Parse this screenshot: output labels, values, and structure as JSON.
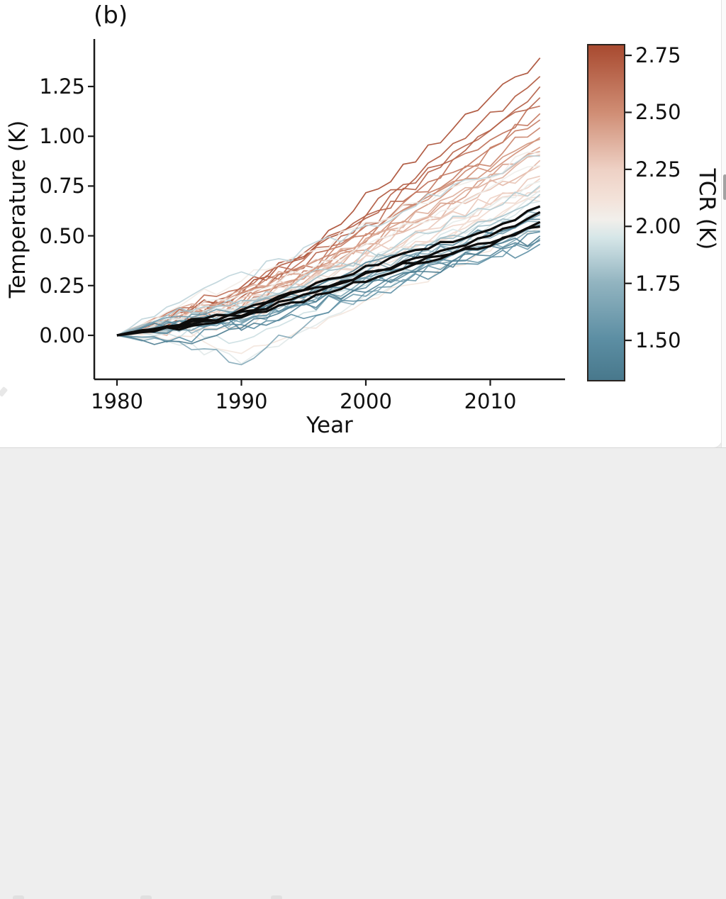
{
  "figure": {
    "panel_label": "(b)",
    "xlabel": "Year",
    "ylabel": "Temperature (K)",
    "colorbar_label": "TCR (K)"
  },
  "chart_data": {
    "type": "line",
    "title": "",
    "xlabel": "Year",
    "ylabel": "Temperature (K)",
    "xlim": [
      1978.2,
      2016.2
    ],
    "ylim": [
      -0.22,
      1.49
    ],
    "grid": false,
    "x_ticks": [
      {
        "value": 1980,
        "label": "1980"
      },
      {
        "value": 1990,
        "label": "1990"
      },
      {
        "value": 2000,
        "label": "2000"
      },
      {
        "value": 2010,
        "label": "2010"
      }
    ],
    "y_ticks": [
      {
        "value": 0.0,
        "label": "0.00"
      },
      {
        "value": 0.25,
        "label": "0.25"
      },
      {
        "value": 0.5,
        "label": "0.50"
      },
      {
        "value": 0.75,
        "label": "0.75"
      },
      {
        "value": 1.0,
        "label": "1.00"
      },
      {
        "value": 1.25,
        "label": "1.25"
      }
    ],
    "anchor_years": [
      1980,
      1985,
      1990,
      1995,
      2000,
      2005,
      2010,
      2014
    ],
    "ensemble_color_by": "tcr",
    "ensemble": [
      {
        "tcr": 2.8,
        "values": [
          0,
          0.1,
          0.22,
          0.42,
          0.7,
          0.95,
          1.18,
          1.4
        ]
      },
      {
        "tcr": 2.75,
        "values": [
          0,
          0.06,
          0.25,
          0.38,
          0.62,
          0.85,
          1.1,
          1.3
        ]
      },
      {
        "tcr": 2.72,
        "values": [
          0,
          0.12,
          0.18,
          0.4,
          0.6,
          0.82,
          1.05,
          1.25
        ]
      },
      {
        "tcr": 2.7,
        "values": [
          0,
          0.08,
          0.2,
          0.35,
          0.58,
          0.8,
          1.02,
          1.2
        ]
      },
      {
        "tcr": 2.65,
        "values": [
          0,
          0.14,
          0.24,
          0.38,
          0.55,
          0.78,
          0.98,
          1.15
        ]
      },
      {
        "tcr": 2.6,
        "values": [
          0,
          0.05,
          0.15,
          0.33,
          0.52,
          0.75,
          0.95,
          1.12
        ]
      },
      {
        "tcr": 2.58,
        "values": [
          0,
          0.1,
          0.2,
          0.3,
          0.5,
          0.72,
          0.92,
          1.08
        ]
      },
      {
        "tcr": 2.55,
        "values": [
          0,
          0.07,
          0.18,
          0.36,
          0.54,
          0.7,
          0.88,
          1.05
        ]
      },
      {
        "tcr": 2.5,
        "values": [
          0,
          0.12,
          0.16,
          0.3,
          0.48,
          0.68,
          0.85,
          1.0
        ]
      },
      {
        "tcr": 2.48,
        "values": [
          0,
          0.04,
          0.14,
          0.28,
          0.45,
          0.65,
          0.83,
          0.98
        ]
      },
      {
        "tcr": 2.45,
        "values": [
          0,
          0.09,
          0.2,
          0.32,
          0.46,
          0.62,
          0.8,
          0.95
        ]
      },
      {
        "tcr": 2.4,
        "values": [
          0,
          0.06,
          0.12,
          0.26,
          0.44,
          0.6,
          0.78,
          0.92
        ]
      },
      {
        "tcr": 2.38,
        "values": [
          0,
          0.11,
          0.22,
          0.34,
          0.48,
          0.63,
          0.78,
          0.9
        ]
      },
      {
        "tcr": 2.35,
        "values": [
          0,
          0.03,
          0.1,
          0.24,
          0.42,
          0.58,
          0.75,
          0.88
        ]
      },
      {
        "tcr": 2.3,
        "values": [
          0,
          0.08,
          0.15,
          0.28,
          0.44,
          0.58,
          0.72,
          0.85
        ]
      },
      {
        "tcr": 2.28,
        "values": [
          0,
          0.05,
          0.18,
          0.3,
          0.4,
          0.55,
          0.68,
          0.8
        ]
      },
      {
        "tcr": 2.25,
        "values": [
          0,
          0.1,
          0.14,
          0.25,
          0.38,
          0.52,
          0.66,
          0.78
        ]
      },
      {
        "tcr": 2.22,
        "values": [
          0,
          0.02,
          0.08,
          0.22,
          0.36,
          0.5,
          0.64,
          0.75
        ]
      },
      {
        "tcr": 2.2,
        "values": [
          0,
          0.07,
          0.16,
          0.26,
          0.38,
          0.48,
          0.62,
          0.72
        ]
      },
      {
        "tcr": 2.15,
        "values": [
          0,
          0.04,
          0.12,
          0.2,
          0.34,
          0.46,
          0.6,
          0.7
        ]
      },
      {
        "tcr": 2.12,
        "values": [
          0,
          -0.02,
          0.06,
          0.18,
          0.32,
          0.44,
          0.58,
          0.68
        ]
      },
      {
        "tcr": 2.1,
        "values": [
          0,
          0.04,
          -0.1,
          0.02,
          0.18,
          0.3,
          0.44,
          0.55
        ]
      },
      {
        "tcr": 2.05,
        "values": [
          0,
          0.15,
          0.28,
          0.4,
          0.55,
          0.68,
          0.82,
          0.92
        ]
      },
      {
        "tcr": 2.02,
        "values": [
          0,
          0.1,
          0.2,
          0.32,
          0.46,
          0.6,
          0.74,
          0.85
        ]
      },
      {
        "tcr": 2.0,
        "values": [
          0,
          0.05,
          0.12,
          0.24,
          0.38,
          0.52,
          0.66,
          0.78
        ]
      },
      {
        "tcr": 1.98,
        "values": [
          0,
          -0.04,
          -0.12,
          0.02,
          0.2,
          0.38,
          0.55,
          0.72
        ]
      },
      {
        "tcr": 1.95,
        "values": [
          0,
          0.08,
          0.14,
          0.22,
          0.34,
          0.46,
          0.58,
          0.68
        ]
      },
      {
        "tcr": 1.92,
        "values": [
          0,
          0.02,
          -0.03,
          0.12,
          0.26,
          0.38,
          0.52,
          0.62
        ]
      },
      {
        "tcr": 1.88,
        "values": [
          0,
          0.18,
          0.3,
          0.42,
          0.55,
          0.68,
          0.8,
          0.9
        ]
      },
      {
        "tcr": 1.85,
        "values": [
          0,
          0.09,
          0.16,
          0.28,
          0.4,
          0.52,
          0.64,
          0.75
        ]
      },
      {
        "tcr": 1.8,
        "values": [
          0,
          0.05,
          0.1,
          0.2,
          0.33,
          0.45,
          0.58,
          0.7
        ]
      },
      {
        "tcr": 1.78,
        "values": [
          0,
          0.12,
          0.18,
          0.26,
          0.36,
          0.46,
          0.56,
          0.65
        ]
      },
      {
        "tcr": 1.75,
        "values": [
          0,
          0.03,
          0.08,
          0.18,
          0.3,
          0.42,
          0.52,
          0.62
        ]
      },
      {
        "tcr": 1.7,
        "values": [
          0,
          0.07,
          0.12,
          0.22,
          0.32,
          0.4,
          0.5,
          0.58
        ]
      },
      {
        "tcr": 1.68,
        "values": [
          0,
          -0.05,
          -0.13,
          0.05,
          0.22,
          0.34,
          0.46,
          0.55
        ]
      },
      {
        "tcr": 1.65,
        "values": [
          0,
          0.04,
          0.1,
          0.16,
          0.26,
          0.36,
          0.45,
          0.52
        ]
      },
      {
        "tcr": 1.6,
        "values": [
          0,
          0.1,
          0.05,
          0.18,
          0.28,
          0.4,
          0.5,
          0.6
        ]
      },
      {
        "tcr": 1.58,
        "values": [
          0,
          0.02,
          0.08,
          0.14,
          0.22,
          0.32,
          0.4,
          0.48
        ]
      },
      {
        "tcr": 1.55,
        "values": [
          0,
          0.06,
          0.14,
          0.2,
          0.3,
          0.38,
          0.47,
          0.55
        ]
      },
      {
        "tcr": 1.5,
        "values": [
          0,
          -0.03,
          0.04,
          0.1,
          0.2,
          0.3,
          0.38,
          0.45
        ]
      },
      {
        "tcr": 1.45,
        "values": [
          0,
          0.05,
          0.1,
          0.18,
          0.26,
          0.34,
          0.44,
          0.52
        ]
      },
      {
        "tcr": 1.42,
        "values": [
          0,
          0.08,
          0.04,
          0.14,
          0.24,
          0.34,
          0.42,
          0.48
        ]
      },
      {
        "tcr": 1.38,
        "values": [
          0,
          0.04,
          0.12,
          0.22,
          0.34,
          0.44,
          0.52,
          0.58
        ]
      },
      {
        "tcr": 1.35,
        "values": [
          0,
          -0.06,
          0.06,
          0.15,
          0.24,
          0.33,
          0.42,
          0.5
        ]
      }
    ],
    "observations": [
      {
        "name": "obs-line-1",
        "values": [
          0,
          0.05,
          0.1,
          0.2,
          0.31,
          0.41,
          0.5,
          0.62
        ]
      },
      {
        "name": "obs-line-2",
        "values": [
          0,
          0.06,
          0.12,
          0.24,
          0.34,
          0.44,
          0.53,
          0.65
        ]
      },
      {
        "name": "obs-line-3",
        "values": [
          0,
          0.04,
          0.09,
          0.18,
          0.28,
          0.37,
          0.46,
          0.57
        ]
      },
      {
        "name": "obs-line-4",
        "values": [
          0,
          0.05,
          0.11,
          0.22,
          0.3,
          0.39,
          0.47,
          0.55
        ]
      }
    ],
    "colorbar": {
      "label": "TCR (K)",
      "vmin": 1.32,
      "vmax": 2.8,
      "ticks": [
        {
          "value": 2.75,
          "label": "2.75"
        },
        {
          "value": 2.5,
          "label": "2.50"
        },
        {
          "value": 2.25,
          "label": "2.25"
        },
        {
          "value": 2.0,
          "label": "2.00"
        },
        {
          "value": 1.75,
          "label": "1.75"
        },
        {
          "value": 1.5,
          "label": "1.50"
        }
      ],
      "stops": [
        {
          "v": 1.32,
          "c": "#48788c"
        },
        {
          "v": 1.5,
          "c": "#5c8ea3"
        },
        {
          "v": 1.75,
          "c": "#92b4c0"
        },
        {
          "v": 1.95,
          "c": "#d6e6e8"
        },
        {
          "v": 2.03,
          "c": "#f2efeb"
        },
        {
          "v": 2.12,
          "c": "#f3e2d9"
        },
        {
          "v": 2.25,
          "c": "#eed1c5"
        },
        {
          "v": 2.5,
          "c": "#d08e75"
        },
        {
          "v": 2.8,
          "c": "#a84a30"
        }
      ]
    },
    "style": {
      "ensemble_line_color_low": "#4a7c92",
      "ensemble_line_color_high": "#a84a30",
      "observation_line_color": "#0d0d0d",
      "axis_color": "#1a1a1a"
    }
  }
}
